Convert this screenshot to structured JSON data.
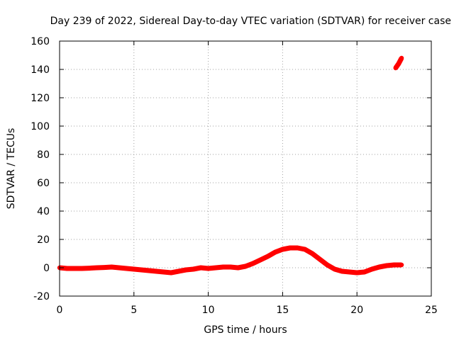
{
  "chart_data": {
    "type": "line",
    "title": "Day 239 of 2022, Sidereal Day-to-day VTEC variation (SDTVAR) for receiver case",
    "xlabel": "GPS time / hours",
    "ylabel": "SDTVAR / TECUs",
    "xlim": [
      0,
      25
    ],
    "ylim": [
      -20,
      160
    ],
    "xticks": [
      0,
      5,
      10,
      15,
      20,
      25
    ],
    "yticks": [
      -20,
      0,
      20,
      40,
      60,
      80,
      100,
      120,
      140,
      160
    ],
    "grid": true,
    "series": [
      {
        "name": "SDTVAR main",
        "color": "#ff0000",
        "x": [
          0,
          0.5,
          1,
          1.5,
          2,
          2.5,
          3,
          3.5,
          4,
          4.5,
          5,
          5.5,
          6,
          6.5,
          7,
          7.5,
          8,
          8.5,
          9,
          9.5,
          10,
          10.5,
          11,
          11.5,
          12,
          12.5,
          13,
          13.5,
          14,
          14.5,
          15,
          15.5,
          16,
          16.5,
          17,
          17.5,
          18,
          18.5,
          19,
          19.5,
          20,
          20.5,
          21,
          21.5,
          22,
          22.5,
          23
        ],
        "y": [
          0,
          -0.5,
          -0.5,
          -0.5,
          -0.3,
          0,
          0.2,
          0.5,
          0,
          -0.5,
          -1,
          -1.5,
          -2,
          -2.5,
          -3,
          -3.5,
          -2.5,
          -1.5,
          -1,
          0,
          -0.5,
          0,
          0.5,
          0.5,
          0,
          1,
          3,
          5.5,
          8,
          11,
          13,
          14,
          14,
          13,
          10,
          6,
          2,
          -1,
          -2.5,
          -3,
          -3.5,
          -3,
          -1,
          0.5,
          1.5,
          2,
          2
        ]
      },
      {
        "name": "SDTVAR late segment",
        "color": "#ff0000",
        "x": [
          22.6,
          22.8,
          23.0
        ],
        "y": [
          141,
          144,
          148
        ]
      }
    ]
  }
}
